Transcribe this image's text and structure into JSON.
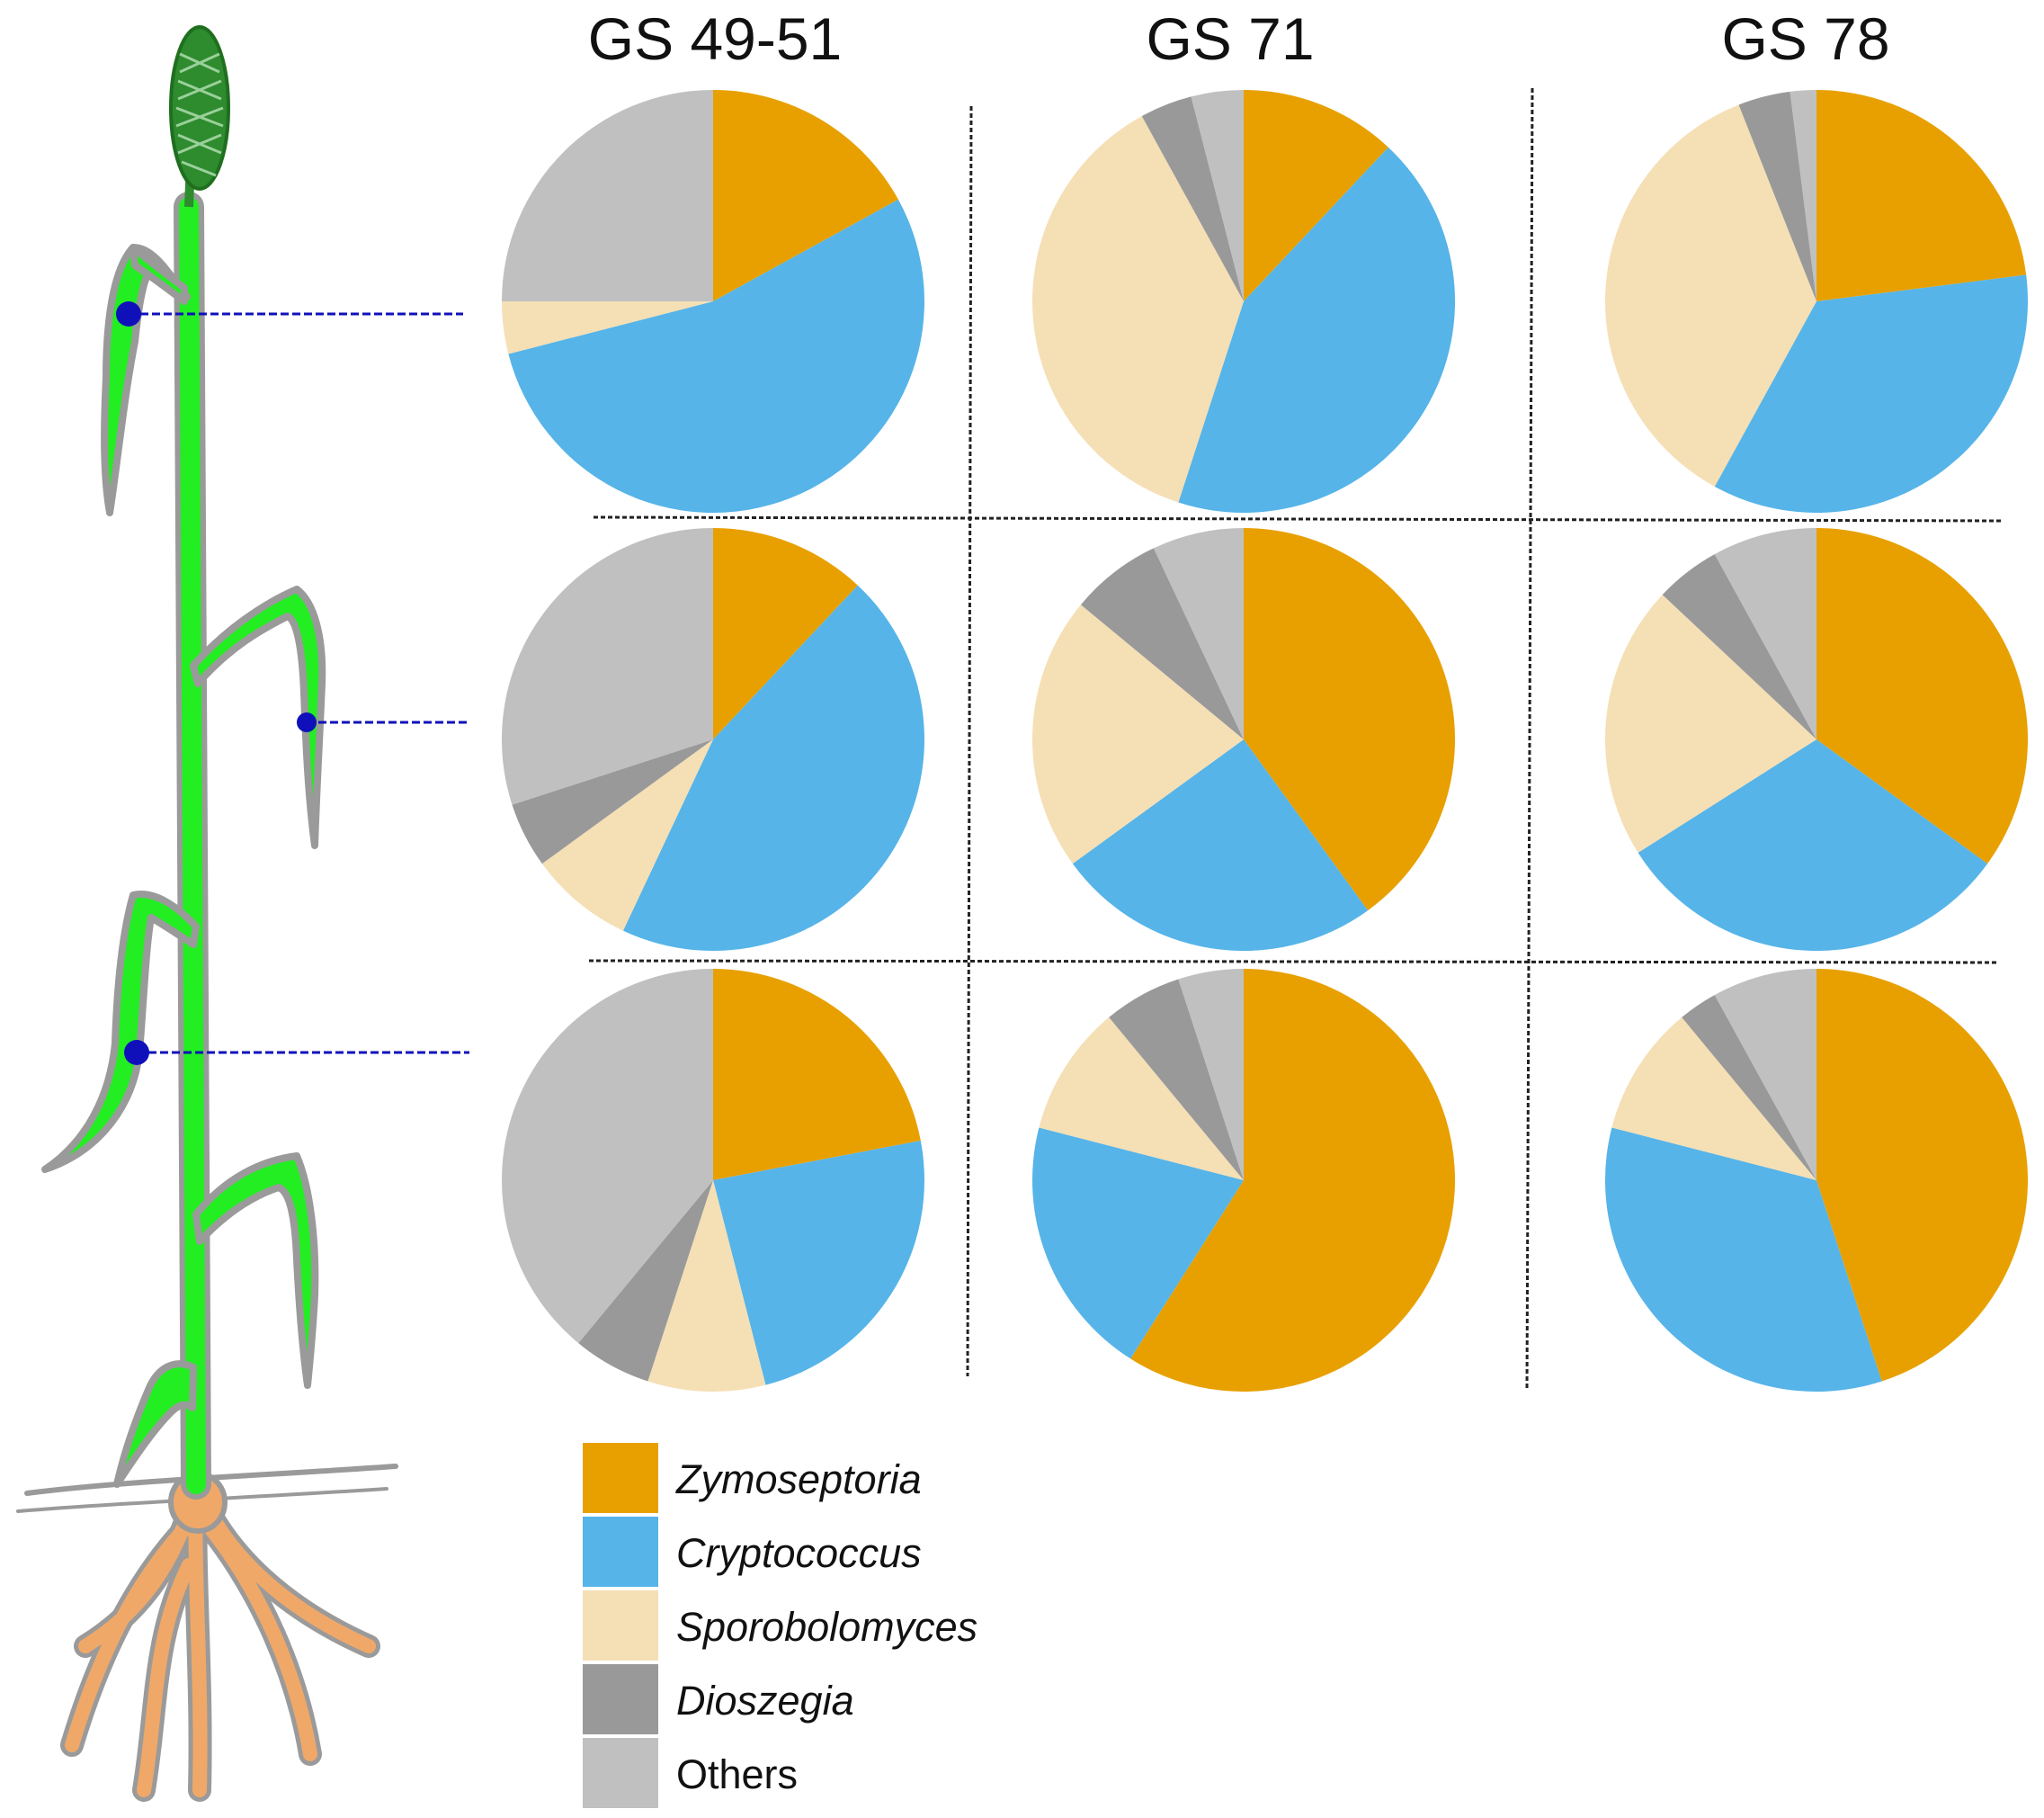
{
  "chart_data": {
    "type": "pie",
    "columns": [
      "GS 49-51",
      "GS 71",
      "GS 78"
    ],
    "categories": [
      "Zymoseptoria",
      "Cryptococcus",
      "Sporobolomyces",
      "Dioszegia",
      "Others"
    ],
    "colors": [
      "#E8A000",
      "#56B4E8",
      "#F5DFB5",
      "#999999",
      "#C0C0C0"
    ],
    "italic": [
      true,
      true,
      true,
      true,
      false
    ],
    "charts": [
      {
        "row": 1,
        "column": "GS 49-51",
        "values": [
          17,
          54,
          4,
          0,
          25
        ]
      },
      {
        "row": 1,
        "column": "GS 71",
        "values": [
          12,
          43,
          37,
          4,
          4
        ]
      },
      {
        "row": 1,
        "column": "GS 78",
        "values": [
          23,
          35,
          36,
          4,
          2
        ]
      },
      {
        "row": 2,
        "column": "GS 49-51",
        "values": [
          12,
          45,
          8,
          5,
          30
        ]
      },
      {
        "row": 2,
        "column": "GS 71",
        "values": [
          40,
          25,
          21,
          7,
          7
        ]
      },
      {
        "row": 2,
        "column": "GS 78",
        "values": [
          35,
          31,
          21,
          5,
          8
        ]
      },
      {
        "row": 3,
        "column": "GS 49-51",
        "values": [
          22,
          24,
          9,
          6,
          39
        ]
      },
      {
        "row": 3,
        "column": "GS 71",
        "values": [
          59,
          20,
          10,
          6,
          5
        ]
      },
      {
        "row": 3,
        "column": "GS 78",
        "values": [
          45,
          34,
          10,
          3,
          8
        ]
      }
    ]
  },
  "legend": {
    "items": [
      "Zymoseptoria",
      "Cryptococcus",
      "Sporobolomyces",
      "Dioszegia",
      "Others"
    ]
  }
}
